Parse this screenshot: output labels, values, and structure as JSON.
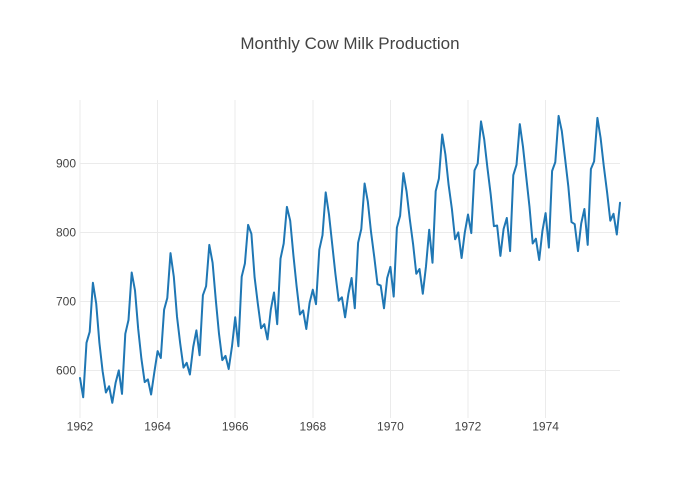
{
  "title": "Monthly Cow Milk Production",
  "colors": {
    "line": "#1f77b4",
    "grid": "#ebebeb",
    "text": "#444444",
    "background": "#ffffff"
  },
  "chart_data": {
    "type": "line",
    "title": "Monthly Cow Milk Production",
    "xlabel": "",
    "ylabel": "",
    "x_frequency": "monthly",
    "x_tick_labels": [
      "1962",
      "1964",
      "1966",
      "1968",
      "1970",
      "1972",
      "1974"
    ],
    "x_tick_values": [
      1962,
      1964,
      1966,
      1968,
      1970,
      1972,
      1974
    ],
    "y_tick_labels": [
      "600",
      "700",
      "800",
      "900"
    ],
    "y_tick_values": [
      600,
      700,
      800,
      900
    ],
    "xlim": [
      1962.0,
      1975.9167
    ],
    "ylim": [
      531,
      992
    ],
    "grid": "on",
    "legend": "none",
    "series": [
      {
        "color": "#1f77b4",
        "start": "1962-01",
        "end": "1975-12",
        "values": [
          589,
          561,
          640,
          656,
          727,
          697,
          640,
          599,
          568,
          577,
          553,
          582,
          600,
          566,
          653,
          673,
          742,
          716,
          660,
          617,
          583,
          587,
          565,
          598,
          628,
          618,
          688,
          705,
          770,
          736,
          678,
          639,
          604,
          611,
          594,
          634,
          658,
          622,
          709,
          722,
          782,
          756,
          702,
          653,
          615,
          621,
          602,
          635,
          677,
          635,
          736,
          755,
          811,
          798,
          735,
          697,
          661,
          667,
          645,
          688,
          713,
          667,
          762,
          784,
          837,
          817,
          767,
          722,
          681,
          687,
          660,
          698,
          717,
          696,
          775,
          796,
          858,
          826,
          783,
          740,
          701,
          706,
          677,
          711,
          734,
          690,
          785,
          805,
          871,
          845,
          801,
          764,
          725,
          723,
          690,
          734,
          750,
          707,
          807,
          824,
          886,
          859,
          819,
          783,
          740,
          747,
          711,
          751,
          804,
          756,
          860,
          878,
          942,
          913,
          869,
          834,
          790,
          800,
          763,
          800,
          826,
          799,
          890,
          900,
          961,
          935,
          894,
          855,
          809,
          810,
          766,
          805,
          821,
          773,
          883,
          898,
          957,
          924,
          881,
          837,
          784,
          791,
          760,
          802,
          828,
          778,
          889,
          902,
          969,
          947,
          908,
          867,
          815,
          812,
          773,
          813,
          834,
          782,
          892,
          903,
          966,
          937,
          896,
          858,
          817,
          827,
          797,
          843
        ]
      }
    ]
  }
}
